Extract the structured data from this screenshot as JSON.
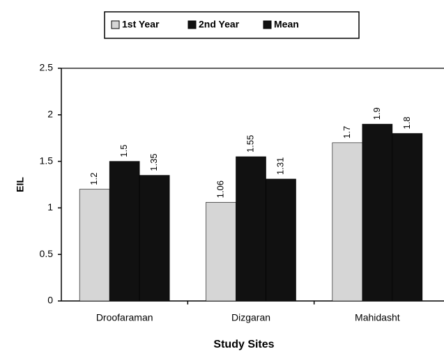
{
  "chart_data": {
    "type": "bar",
    "categories": [
      "Droofaraman",
      "Dizgaran",
      "Mahidasht"
    ],
    "series": [
      {
        "name": "1st Year",
        "color": "#d6d6d6",
        "values": [
          1.2,
          1.06,
          1.7
        ]
      },
      {
        "name": "2nd Year",
        "color": "#111111",
        "values": [
          1.5,
          1.55,
          1.9
        ]
      },
      {
        "name": "Mean",
        "color": "#111111",
        "values": [
          1.35,
          1.31,
          1.8
        ]
      }
    ],
    "ylabel": "EIL",
    "xlabel": "Study Sites",
    "ylim": [
      0,
      2.5
    ],
    "yticks": [
      0,
      0.5,
      1,
      1.5,
      2,
      2.5
    ],
    "legend": "top",
    "grid": false
  }
}
